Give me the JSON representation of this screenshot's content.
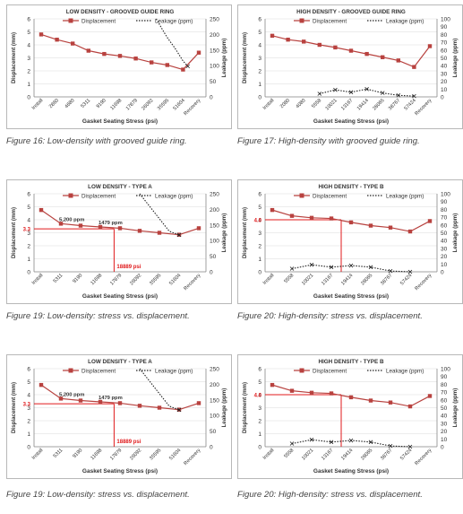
{
  "charts": [
    {
      "caption": "Figure 16: Low-density with grooved guide ring.",
      "chart_data": {
        "type": "line",
        "title": "LOW DENSITY - GROOVED GUIDE RING",
        "xlabel": "Gasket Seating Stress (psi)",
        "ylabel_left": "Displacement (mm)",
        "ylabel_right": "Leakage (ppm)",
        "categories": [
          "Install",
          "2860",
          "4680",
          "5311",
          "9190",
          "11698",
          "17879",
          "26092",
          "35595",
          "51604",
          "Recovery"
        ],
        "ylim_left": [
          0,
          6
        ],
        "yticks_left": [
          "0",
          "1",
          "2",
          "3",
          "4",
          "5",
          "6"
        ],
        "ylim_right": [
          0,
          250
        ],
        "yticks_right": [
          "0",
          "50",
          "100",
          "150",
          "200",
          "250"
        ],
        "series": [
          {
            "name": "Displacement",
            "axis": "left",
            "color": "#b8423f",
            "style": "solid-square",
            "values": [
              4.8,
              4.4,
              4.1,
              3.55,
              3.3,
              3.15,
              2.95,
              2.65,
              2.45,
              2.1,
              3.4
            ]
          },
          {
            "name": "Leakage (ppm)",
            "axis": "right",
            "color": "#222222",
            "style": "dotted",
            "points": [
              [
                7.3,
                250
              ],
              [
                7.7,
                215
              ],
              [
                8.0,
                190
              ],
              [
                8.5,
                155
              ],
              [
                9.0,
                115
              ],
              [
                9.3,
                98
              ]
            ]
          }
        ],
        "legend": "top"
      }
    },
    {
      "caption": "Figure 17: High-density with grooved guide ring.",
      "chart_data": {
        "type": "line",
        "title": "HIGH DENSITY - GROOVED GUIDE RING",
        "xlabel": "Gasket Seating Stress (psi)",
        "ylabel_left": "Displacement (mm)",
        "ylabel_right": "Leakage (ppm)",
        "categories": [
          "Install",
          "2080",
          "4080",
          "5558",
          "10021",
          "13167",
          "19414",
          "28065",
          "38767",
          "57424",
          "Recovery"
        ],
        "ylim_left": [
          0,
          6
        ],
        "yticks_left": [
          "0",
          "1",
          "2",
          "3",
          "4",
          "5",
          "6"
        ],
        "ylim_right": [
          0,
          100
        ],
        "yticks_right": [
          "0",
          "10",
          "20",
          "30",
          "40",
          "50",
          "60",
          "70",
          "80",
          "90",
          "100"
        ],
        "series": [
          {
            "name": "Displacement",
            "axis": "left",
            "color": "#b8423f",
            "style": "solid-square",
            "values": [
              4.7,
              4.4,
              4.25,
              4.0,
              3.8,
              3.55,
              3.3,
              3.05,
              2.8,
              2.3,
              3.9
            ]
          },
          {
            "name": "Leakage (ppm)",
            "axis": "right",
            "color": "#222222",
            "style": "dotted-x",
            "points": [
              [
                3,
                4
              ],
              [
                4,
                9
              ],
              [
                5,
                6
              ],
              [
                6,
                10
              ],
              [
                7,
                5
              ],
              [
                8,
                2
              ],
              [
                9,
                1
              ]
            ]
          }
        ],
        "legend": "top"
      }
    },
    {
      "caption": "Figure 19: Low-density: stress vs. displacement.",
      "chart_data": {
        "type": "line",
        "title": "LOW DENSITY - TYPE A",
        "xlabel": "Gasket Seating Stress (psi)",
        "ylabel_left": "Displacement (mm)",
        "ylabel_right": "Leakage (ppm)",
        "categories": [
          "Install",
          "5311",
          "9190",
          "11698",
          "17879",
          "26092",
          "35595",
          "51604",
          "Recovery"
        ],
        "ylim_left": [
          0,
          6
        ],
        "yticks_left": [
          "0",
          "1",
          "2",
          "3",
          "4",
          "5",
          "6"
        ],
        "ylim_right": [
          0,
          250
        ],
        "yticks_right": [
          "0",
          "50",
          "100",
          "150",
          "200",
          "250"
        ],
        "series": [
          {
            "name": "Displacement",
            "axis": "left",
            "color": "#b8423f",
            "style": "solid-square",
            "values": [
              4.75,
              3.7,
              3.55,
              3.45,
              3.35,
              3.15,
              3.0,
              2.85,
              3.35
            ]
          },
          {
            "name": "Leakage (ppm)",
            "axis": "right",
            "color": "#222222",
            "style": "dotted",
            "points": [
              [
                5.0,
                250
              ],
              [
                5.5,
                210
              ],
              [
                6.0,
                170
              ],
              [
                6.5,
                130
              ],
              [
                7.0,
                118
              ]
            ]
          }
        ],
        "annotations": {
          "hline_label": "3.3",
          "hline_value": 3.3,
          "vline_label": "18889 psi",
          "vline_index": 3.7,
          "labels": [
            {
              "text": "5,200 ppm",
              "i": 1,
              "v": 3.9
            },
            {
              "text": "1479 ppm",
              "i": 3,
              "v": 3.65
            }
          ]
        },
        "legend": "top"
      }
    },
    {
      "caption": "Figure 20: High-density: stress vs. displacement.",
      "chart_data": {
        "type": "line",
        "title": "HIGH DENSITY - TYPE B",
        "xlabel": "Gasket Seating Stress (psi)",
        "ylabel_left": "Displacement (mm)",
        "ylabel_right": "Leakage (ppm)",
        "categories": [
          "Install",
          "5558",
          "10021",
          "13167",
          "19414",
          "28065",
          "38767",
          "57424",
          "Recovery"
        ],
        "ylim_left": [
          0,
          6
        ],
        "yticks_left": [
          "0",
          "1",
          "2",
          "3",
          "4",
          "5",
          "6"
        ],
        "ylim_right": [
          0,
          100
        ],
        "yticks_right": [
          "0",
          "10",
          "20",
          "30",
          "40",
          "50",
          "60",
          "70",
          "80",
          "90",
          "100"
        ],
        "series": [
          {
            "name": "Displacement",
            "axis": "left",
            "color": "#b8423f",
            "style": "solid-square",
            "values": [
              4.75,
              4.3,
              4.15,
              4.1,
              3.8,
              3.55,
              3.4,
              3.1,
              3.9
            ]
          },
          {
            "name": "Leakage (ppm)",
            "axis": "right",
            "color": "#222222",
            "style": "dotted-x",
            "points": [
              [
                1,
                4
              ],
              [
                2,
                9
              ],
              [
                3,
                6
              ],
              [
                4,
                8
              ],
              [
                5,
                6
              ],
              [
                6,
                1
              ],
              [
                7,
                0
              ]
            ]
          }
        ],
        "annotations": {
          "hline_label": "4.0",
          "hline_value": 4.0,
          "vline_label": "",
          "vline_index": 3.5,
          "labels": []
        },
        "legend": "top"
      }
    },
    {
      "caption": "Figure 19: Low-density: stress vs. displacement.",
      "chart_data": {
        "type": "line",
        "title": "LOW DENSITY - TYPE A",
        "xlabel": "Gasket Seating Stress (psi)",
        "ylabel_left": "Displacement (mm)",
        "ylabel_right": "Leakage (ppm)",
        "categories": [
          "Install",
          "5311",
          "9190",
          "11698",
          "17879",
          "26092",
          "35595",
          "51604",
          "Recovery"
        ],
        "ylim_left": [
          0,
          6
        ],
        "yticks_left": [
          "0",
          "1",
          "2",
          "3",
          "4",
          "5",
          "6"
        ],
        "ylim_right": [
          0,
          250
        ],
        "yticks_right": [
          "0",
          "50",
          "100",
          "150",
          "200",
          "250"
        ],
        "series": [
          {
            "name": "Displacement",
            "axis": "left",
            "color": "#b8423f",
            "style": "solid-square",
            "values": [
              4.75,
              3.7,
              3.55,
              3.45,
              3.35,
              3.15,
              3.0,
              2.85,
              3.35
            ]
          },
          {
            "name": "Leakage (ppm)",
            "axis": "right",
            "color": "#222222",
            "style": "dotted",
            "points": [
              [
                5.0,
                250
              ],
              [
                5.5,
                210
              ],
              [
                6.0,
                170
              ],
              [
                6.5,
                130
              ],
              [
                7.0,
                118
              ]
            ]
          }
        ],
        "annotations": {
          "hline_label": "3.3",
          "hline_value": 3.3,
          "vline_label": "18889 psi",
          "vline_index": 3.7,
          "labels": [
            {
              "text": "5,200 ppm",
              "i": 1,
              "v": 3.9
            },
            {
              "text": "1479 ppm",
              "i": 3,
              "v": 3.65
            }
          ]
        },
        "legend": "top"
      }
    },
    {
      "caption": "Figure 20: High-density: stress vs. displacement.",
      "chart_data": {
        "type": "line",
        "title": "HIGH DENSITY - TYPE B",
        "xlabel": "Gasket Seating Stress (psi)",
        "ylabel_left": "Displacement (mm)",
        "ylabel_right": "Leakage (ppm)",
        "categories": [
          "Install",
          "5558",
          "10021",
          "13167",
          "19414",
          "28065",
          "38767",
          "57424",
          "Recovery"
        ],
        "ylim_left": [
          0,
          6
        ],
        "yticks_left": [
          "0",
          "1",
          "2",
          "3",
          "4",
          "5",
          "6"
        ],
        "ylim_right": [
          0,
          100
        ],
        "yticks_right": [
          "0",
          "10",
          "20",
          "30",
          "40",
          "50",
          "60",
          "70",
          "80",
          "90",
          "100"
        ],
        "series": [
          {
            "name": "Displacement",
            "axis": "left",
            "color": "#b8423f",
            "style": "solid-square",
            "values": [
              4.75,
              4.3,
              4.15,
              4.1,
              3.8,
              3.55,
              3.4,
              3.1,
              3.9
            ]
          },
          {
            "name": "Leakage (ppm)",
            "axis": "right",
            "color": "#222222",
            "style": "dotted-x",
            "points": [
              [
                1,
                4
              ],
              [
                2,
                9
              ],
              [
                3,
                6
              ],
              [
                4,
                8
              ],
              [
                5,
                6
              ],
              [
                6,
                1
              ],
              [
                7,
                0
              ]
            ]
          }
        ],
        "annotations": {
          "hline_label": "4.0",
          "hline_value": 4.0,
          "vline_label": "",
          "vline_index": 3.5,
          "labels": []
        },
        "legend": "top"
      }
    }
  ],
  "style": {
    "grid_color": "#d9d9d9",
    "axis_color": "#888888",
    "annotation_color": "#e0191b"
  }
}
